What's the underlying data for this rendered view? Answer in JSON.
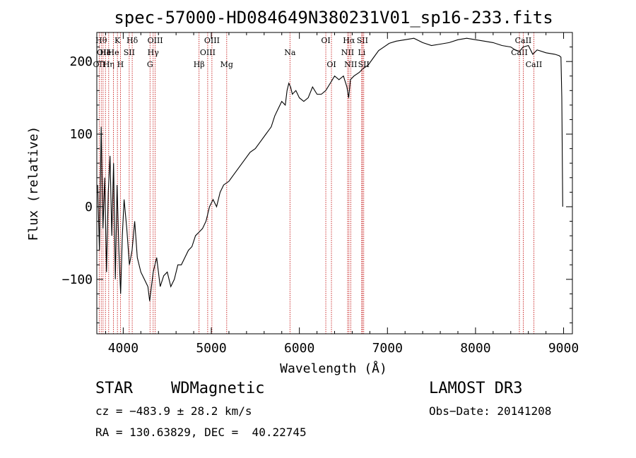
{
  "chart_data": {
    "type": "line",
    "title": "spec-57000-HD084649N380231V01_sp16-233.fits",
    "xlabel": "Wavelength (Å)",
    "ylabel": "Flux (relative)",
    "xlim": [
      3700,
      9100
    ],
    "ylim": [
      -175,
      240
    ],
    "xticks": [
      {
        "value": 4000,
        "label": "4000"
      },
      {
        "value": 5000,
        "label": "5000"
      },
      {
        "value": 6000,
        "label": "6000"
      },
      {
        "value": 7000,
        "label": "7000"
      },
      {
        "value": 8000,
        "label": "8000"
      },
      {
        "value": 9000,
        "label": "9000"
      }
    ],
    "yticks": [
      {
        "value": -100,
        "label": "−100"
      },
      {
        "value": 0,
        "label": "0"
      },
      {
        "value": 100,
        "label": "100"
      },
      {
        "value": 200,
        "label": "200"
      }
    ],
    "grid": false,
    "line_color": "#000000",
    "marker_color": "#c00000",
    "series": [
      {
        "x": [
          3710,
          3730,
          3750,
          3770,
          3790,
          3810,
          3830,
          3850,
          3870,
          3890,
          3910,
          3930,
          3950,
          3970,
          3990,
          4010,
          4040,
          4070,
          4100,
          4130,
          4160,
          4200,
          4240,
          4280,
          4300,
          4340,
          4380,
          4420,
          4460,
          4500,
          4540,
          4580,
          4620,
          4660,
          4700,
          4740,
          4780,
          4820,
          4860,
          4900,
          4940,
          4980,
          5020,
          5060,
          5100,
          5140,
          5200,
          5260,
          5320,
          5380,
          5440,
          5500,
          5560,
          5620,
          5680,
          5720,
          5760,
          5800,
          5840,
          5860,
          5880,
          5900,
          5920,
          5960,
          6000,
          6050,
          6100,
          6150,
          6200,
          6250,
          6300,
          6350,
          6400,
          6450,
          6500,
          6540,
          6560,
          6580,
          6620,
          6680,
          6720,
          6780,
          6840,
          6900,
          6960,
          7020,
          7100,
          7200,
          7300,
          7400,
          7500,
          7600,
          7700,
          7800,
          7900,
          8000,
          8100,
          8200,
          8300,
          8400,
          8450,
          8500,
          8540,
          8600,
          8650,
          8700,
          8800,
          8900,
          8950,
          8970,
          8980,
          8990
        ],
        "y": [
          30,
          -60,
          110,
          -30,
          40,
          -90,
          20,
          70,
          -40,
          60,
          -100,
          30,
          -60,
          -120,
          -40,
          10,
          -30,
          -80,
          -60,
          -20,
          -70,
          -90,
          -100,
          -110,
          -130,
          -90,
          -70,
          -110,
          -95,
          -90,
          -110,
          -100,
          -80,
          -80,
          -70,
          -60,
          -55,
          -40,
          -35,
          -30,
          -20,
          0,
          10,
          0,
          20,
          30,
          35,
          45,
          55,
          65,
          75,
          80,
          90,
          100,
          110,
          125,
          135,
          145,
          140,
          160,
          170,
          165,
          155,
          160,
          150,
          145,
          150,
          165,
          155,
          155,
          160,
          170,
          180,
          175,
          180,
          165,
          150,
          175,
          180,
          185,
          190,
          195,
          205,
          215,
          220,
          225,
          228,
          230,
          232,
          226,
          222,
          224,
          226,
          230,
          232,
          230,
          228,
          226,
          222,
          220,
          216,
          214,
          220,
          222,
          210,
          216,
          212,
          210,
          208,
          206,
          150,
          0
        ]
      }
    ],
    "markers": [
      {
        "wavelength": 3727,
        "row": 3,
        "label": "OII"
      },
      {
        "wavelength": 3750,
        "row": 1,
        "label": "Hθ"
      },
      {
        "wavelength": 3771,
        "row": 2,
        "label": "OII"
      },
      {
        "wavelength": 3798,
        "row": 2,
        "label": "He"
      },
      {
        "wavelength": 3835,
        "row": 3,
        "label": "Hη"
      },
      {
        "wavelength": 3889,
        "row": 2,
        "label": "He"
      },
      {
        "wavelength": 3934,
        "row": 1,
        "label": "K"
      },
      {
        "wavelength": 3968,
        "row": 3,
        "label": "H"
      },
      {
        "wavelength": 4068,
        "row": 2,
        "label": "SII"
      },
      {
        "wavelength": 4102,
        "row": 1,
        "label": "Hδ"
      },
      {
        "wavelength": 4304,
        "row": 3,
        "label": "G"
      },
      {
        "wavelength": 4340,
        "row": 2,
        "label": "Hγ"
      },
      {
        "wavelength": 4363,
        "row": 1,
        "label": "OIII"
      },
      {
        "wavelength": 4861,
        "row": 3,
        "label": "Hβ"
      },
      {
        "wavelength": 4959,
        "row": 2,
        "label": "OIII"
      },
      {
        "wavelength": 5007,
        "row": 1,
        "label": "OIII"
      },
      {
        "wavelength": 5175,
        "row": 3,
        "label": "Mg"
      },
      {
        "wavelength": 5893,
        "row": 2,
        "label": "Na"
      },
      {
        "wavelength": 6300,
        "row": 1,
        "label": "OI"
      },
      {
        "wavelength": 6364,
        "row": 3,
        "label": "OI"
      },
      {
        "wavelength": 6548,
        "row": 2,
        "label": "NII"
      },
      {
        "wavelength": 6563,
        "row": 1,
        "label": "Hα"
      },
      {
        "wavelength": 6583,
        "row": 3,
        "label": "NII"
      },
      {
        "wavelength": 6708,
        "row": 2,
        "label": "Li"
      },
      {
        "wavelength": 6716,
        "row": 1,
        "label": "SII"
      },
      {
        "wavelength": 6731,
        "row": 3,
        "label": "SII"
      },
      {
        "wavelength": 8498,
        "row": 2,
        "label": "CaII"
      },
      {
        "wavelength": 8542,
        "row": 1,
        "label": "CaII"
      },
      {
        "wavelength": 8662,
        "row": 3,
        "label": "CaII"
      }
    ]
  },
  "info": {
    "class": "STAR",
    "subclass": "WDMagnetic",
    "survey": "LAMOST DR3",
    "velocity": "cz = −483.9 ± 28.2 km/s",
    "obs_date": "Obs−Date: 20141208",
    "coords": "RA = 130.63829, DEC =  40.22745"
  }
}
